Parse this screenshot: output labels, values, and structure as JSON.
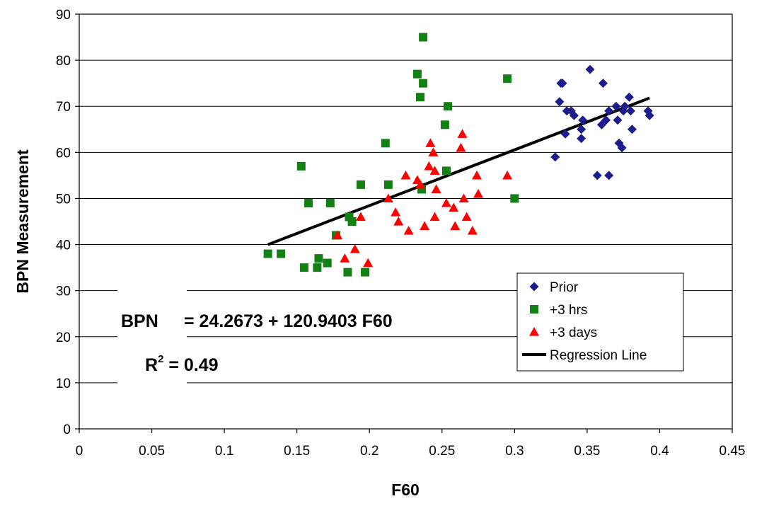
{
  "chart_data": {
    "type": "scatter",
    "xlabel": "F60",
    "ylabel": "BPN Measurement",
    "xlim": [
      0,
      0.45
    ],
    "ylim": [
      0,
      90
    ],
    "xticks": [
      0,
      0.05,
      0.1,
      0.15,
      0.2,
      0.25,
      0.3,
      0.35,
      0.4,
      0.45
    ],
    "xtick_labels": [
      "0",
      "0.05",
      "0.1",
      "0.15",
      "0.2",
      "0.25",
      "0.3",
      "0.35",
      "0.4",
      "0.45"
    ],
    "yticks": [
      0,
      10,
      20,
      30,
      40,
      50,
      60,
      70,
      80,
      90
    ],
    "ytick_labels": [
      "0",
      "10",
      "20",
      "30",
      "40",
      "50",
      "60",
      "70",
      "80",
      "90"
    ],
    "grid": "horizontal",
    "legend_position": "bottom-right",
    "series": [
      {
        "name": "Prior",
        "marker": "diamond",
        "color": "#1c1c8c",
        "points": [
          [
            0.328,
            59
          ],
          [
            0.331,
            71
          ],
          [
            0.332,
            75
          ],
          [
            0.333,
            75
          ],
          [
            0.335,
            64
          ],
          [
            0.336,
            69
          ],
          [
            0.339,
            69
          ],
          [
            0.341,
            68
          ],
          [
            0.346,
            65
          ],
          [
            0.346,
            63
          ],
          [
            0.347,
            67
          ],
          [
            0.352,
            78
          ],
          [
            0.357,
            55
          ],
          [
            0.36,
            66
          ],
          [
            0.361,
            75
          ],
          [
            0.363,
            67
          ],
          [
            0.365,
            55
          ],
          [
            0.365,
            69
          ],
          [
            0.37,
            70
          ],
          [
            0.371,
            67
          ],
          [
            0.372,
            62
          ],
          [
            0.374,
            61
          ],
          [
            0.375,
            69
          ],
          [
            0.376,
            70
          ],
          [
            0.379,
            72
          ],
          [
            0.38,
            69
          ],
          [
            0.381,
            65
          ],
          [
            0.392,
            69
          ],
          [
            0.393,
            68
          ]
        ]
      },
      {
        "name": "+3 hrs",
        "marker": "square",
        "color": "#138013",
        "points": [
          [
            0.13,
            38
          ],
          [
            0.139,
            38
          ],
          [
            0.153,
            57
          ],
          [
            0.155,
            35
          ],
          [
            0.158,
            49
          ],
          [
            0.164,
            35
          ],
          [
            0.165,
            37
          ],
          [
            0.171,
            36
          ],
          [
            0.173,
            49
          ],
          [
            0.177,
            42
          ],
          [
            0.185,
            34
          ],
          [
            0.186,
            46
          ],
          [
            0.188,
            45
          ],
          [
            0.194,
            53
          ],
          [
            0.197,
            34
          ],
          [
            0.211,
            62
          ],
          [
            0.213,
            53
          ],
          [
            0.233,
            77
          ],
          [
            0.235,
            72
          ],
          [
            0.236,
            52
          ],
          [
            0.237,
            75
          ],
          [
            0.237,
            85
          ],
          [
            0.252,
            66
          ],
          [
            0.253,
            56
          ],
          [
            0.254,
            70
          ],
          [
            0.295,
            76
          ],
          [
            0.3,
            50
          ]
        ]
      },
      {
        "name": "+3 days",
        "marker": "triangle",
        "color": "#ff0000",
        "points": [
          [
            0.178,
            42
          ],
          [
            0.183,
            37
          ],
          [
            0.19,
            39
          ],
          [
            0.194,
            46
          ],
          [
            0.199,
            36
          ],
          [
            0.213,
            50
          ],
          [
            0.218,
            47
          ],
          [
            0.22,
            45
          ],
          [
            0.225,
            55
          ],
          [
            0.227,
            43
          ],
          [
            0.233,
            54
          ],
          [
            0.235,
            53
          ],
          [
            0.238,
            44
          ],
          [
            0.241,
            57
          ],
          [
            0.242,
            62
          ],
          [
            0.244,
            60
          ],
          [
            0.245,
            46
          ],
          [
            0.245,
            56
          ],
          [
            0.246,
            52
          ],
          [
            0.253,
            49
          ],
          [
            0.258,
            48
          ],
          [
            0.259,
            44
          ],
          [
            0.263,
            61
          ],
          [
            0.264,
            64
          ],
          [
            0.265,
            50
          ],
          [
            0.267,
            46
          ],
          [
            0.271,
            43
          ],
          [
            0.274,
            55
          ],
          [
            0.275,
            51
          ],
          [
            0.295,
            55
          ]
        ]
      }
    ],
    "regression": {
      "name": "Regression Line",
      "color": "#000000",
      "intercept": 24.2673,
      "slope": 120.9403,
      "x_range": [
        0.13,
        0.393
      ]
    },
    "annotations": {
      "equation_lhs": "BPN",
      "equation_rhs": "= 24.2673 + 120.9403 F60",
      "r2_prefix": "R",
      "r2_superscript": "2",
      "r2_value": " = 0.49"
    }
  }
}
